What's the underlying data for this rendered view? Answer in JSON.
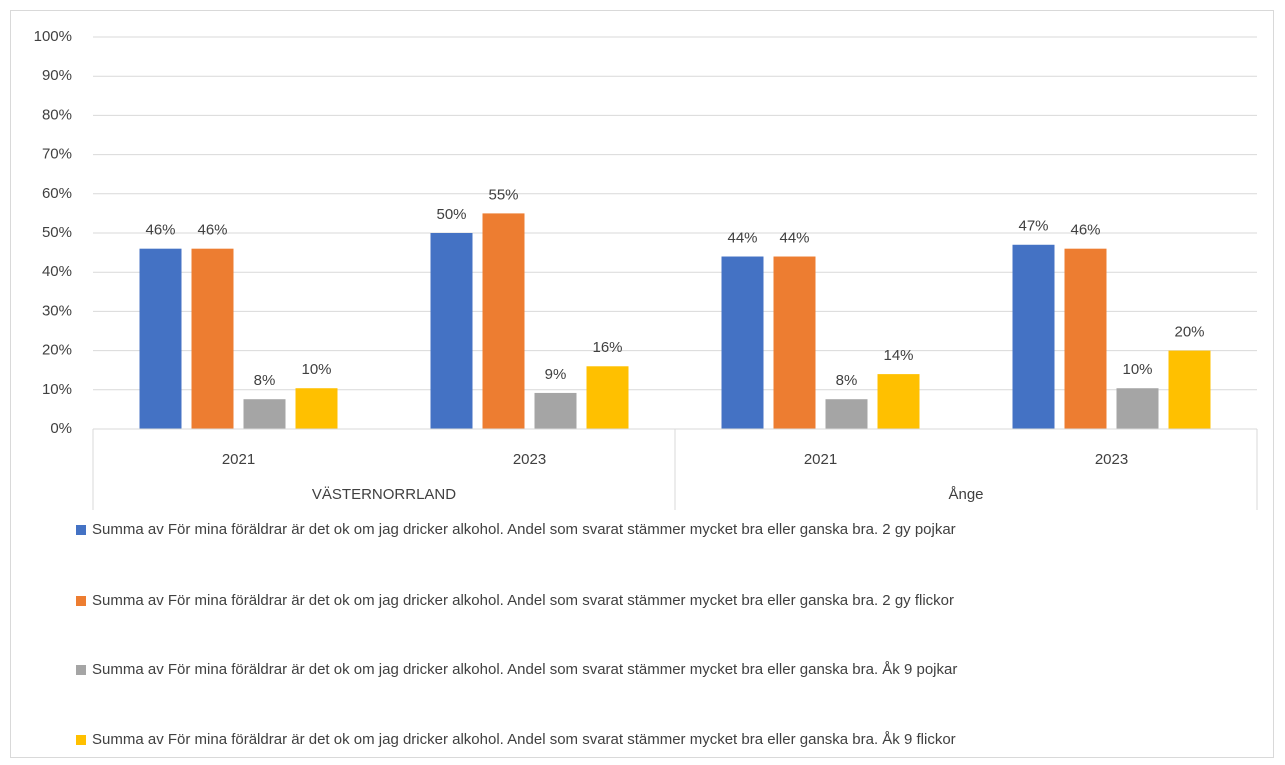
{
  "chart_data": {
    "type": "bar",
    "categories": [
      "2021",
      "2023",
      "2021",
      "2023"
    ],
    "groups": [
      "VÄSTERNORRLAND",
      "Ånge"
    ],
    "series": [
      {
        "name": "Summa av För mina föräldrar är det ok om jag dricker alkohol. Andel som svarat stämmer mycket bra eller ganska bra. 2 gy pojkar",
        "color": "#4472c4",
        "values": [
          46,
          50,
          44,
          47
        ],
        "value_labels": [
          "46%",
          "50%",
          "44%",
          "47%"
        ]
      },
      {
        "name": "Summa av För mina föräldrar är det ok om jag dricker alkohol. Andel som svarat stämmer mycket bra eller ganska bra. 2 gy flickor",
        "color": "#ed7d31",
        "values": [
          46,
          55,
          44,
          46
        ],
        "value_labels": [
          "46%",
          "55%",
          "44%",
          "46%"
        ]
      },
      {
        "name": "Summa av För mina föräldrar är det ok om jag dricker alkohol. Andel som svarat stämmer mycket bra eller ganska bra. Åk 9 pojkar",
        "color": "#a5a5a5",
        "values": [
          7.6,
          9.2,
          7.6,
          10.4
        ],
        "value_labels": [
          "8%",
          "9%",
          "8%",
          "10%"
        ]
      },
      {
        "name": "Summa av För mina föräldrar är det ok om jag dricker alkohol. Andel som svarat stämmer mycket bra eller ganska bra. Åk 9 flickor",
        "color": "#ffc000",
        "values": [
          10.4,
          16,
          14,
          20
        ],
        "value_labels": [
          "10%",
          "16%",
          "14%",
          "20%"
        ]
      }
    ],
    "ylim": [
      0,
      100
    ],
    "yticks": [
      {
        "value": 0,
        "label": "0%"
      },
      {
        "value": 10,
        "label": "10%"
      },
      {
        "value": 20,
        "label": "20%"
      },
      {
        "value": 30,
        "label": "30%"
      },
      {
        "value": 40,
        "label": "40%"
      },
      {
        "value": 50,
        "label": "50%"
      },
      {
        "value": 60,
        "label": "60%"
      },
      {
        "value": 70,
        "label": "70%"
      },
      {
        "value": 80,
        "label": "80%"
      },
      {
        "value": 90,
        "label": "90%"
      },
      {
        "value": 100,
        "label": "100%"
      }
    ],
    "grid": true,
    "legend": "bottom"
  }
}
